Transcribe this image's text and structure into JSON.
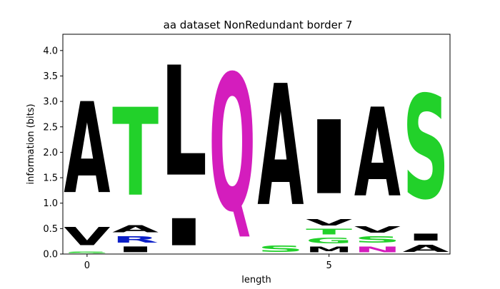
{
  "chart_data": {
    "type": "sequence-logo",
    "title": "aa dataset NonRedundant border 7",
    "xlabel": "length",
    "ylabel": "information (bits)",
    "xlim": [
      -0.5,
      7.5
    ],
    "ylim": [
      0,
      4.32
    ],
    "xticks": [
      {
        "value": 0,
        "label": "0"
      },
      {
        "value": 5,
        "label": "5"
      }
    ],
    "yticks": [
      {
        "value": 0.0,
        "label": "0.0"
      },
      {
        "value": 0.5,
        "label": "0.5"
      },
      {
        "value": 1.0,
        "label": "1.0"
      },
      {
        "value": 1.5,
        "label": "1.5"
      },
      {
        "value": 2.0,
        "label": "2.0"
      },
      {
        "value": 2.5,
        "label": "2.5"
      },
      {
        "value": 3.0,
        "label": "3.0"
      },
      {
        "value": 3.5,
        "label": "3.5"
      },
      {
        "value": 4.0,
        "label": "4.0"
      }
    ],
    "colors": {
      "black": "#000000",
      "green": "#22d12a",
      "blue": "#0b1fc8",
      "magenta": "#d41dbd"
    },
    "positions": [
      {
        "x": 0,
        "letters": [
          {
            "letter": "S",
            "height": 0.06,
            "color": "green"
          },
          {
            "letter": "V",
            "height": 0.57,
            "color": "black"
          },
          {
            "letter": "A",
            "height": 2.87,
            "color": "black"
          }
        ]
      },
      {
        "x": 1,
        "letters": [
          {
            "letter": "I",
            "height": 0.18,
            "color": "black"
          },
          {
            "letter": "R",
            "height": 0.2,
            "color": "blue"
          },
          {
            "letter": "A",
            "height": 0.22,
            "color": "black"
          },
          {
            "letter": "T",
            "height": 2.77,
            "color": "green"
          }
        ]
      },
      {
        "x": 2,
        "letters": [
          {
            "letter": "I",
            "height": 0.85,
            "color": "black"
          },
          {
            "letter": "L",
            "height": 3.47,
            "color": "black"
          }
        ]
      },
      {
        "x": 3,
        "letters": [
          {
            "letter": "Q",
            "height": 4.3,
            "color": "magenta"
          }
        ]
      },
      {
        "x": 4,
        "letters": [
          {
            "letter": "S",
            "height": 0.2,
            "color": "green"
          },
          {
            "letter": "A",
            "height": 3.82,
            "color": "black"
          }
        ]
      },
      {
        "x": 5,
        "letters": [
          {
            "letter": "M",
            "height": 0.17,
            "color": "black"
          },
          {
            "letter": "G",
            "height": 0.18,
            "color": "green"
          },
          {
            "letter": "T",
            "height": 0.17,
            "color": "green"
          },
          {
            "letter": "V",
            "height": 0.2,
            "color": "black"
          },
          {
            "letter": "I",
            "height": 2.33,
            "color": "black"
          }
        ]
      },
      {
        "x": 6,
        "letters": [
          {
            "letter": "N",
            "height": 0.18,
            "color": "magenta"
          },
          {
            "letter": "S",
            "height": 0.2,
            "color": "green"
          },
          {
            "letter": "V",
            "height": 0.2,
            "color": "black"
          },
          {
            "letter": "A",
            "height": 2.8,
            "color": "black"
          }
        ]
      },
      {
        "x": 7,
        "letters": [
          {
            "letter": "A",
            "height": 0.22,
            "color": "black"
          },
          {
            "letter": "I",
            "height": 0.22,
            "color": "black"
          },
          {
            "letter": "S",
            "height": 3.27,
            "color": "green"
          }
        ]
      }
    ]
  }
}
